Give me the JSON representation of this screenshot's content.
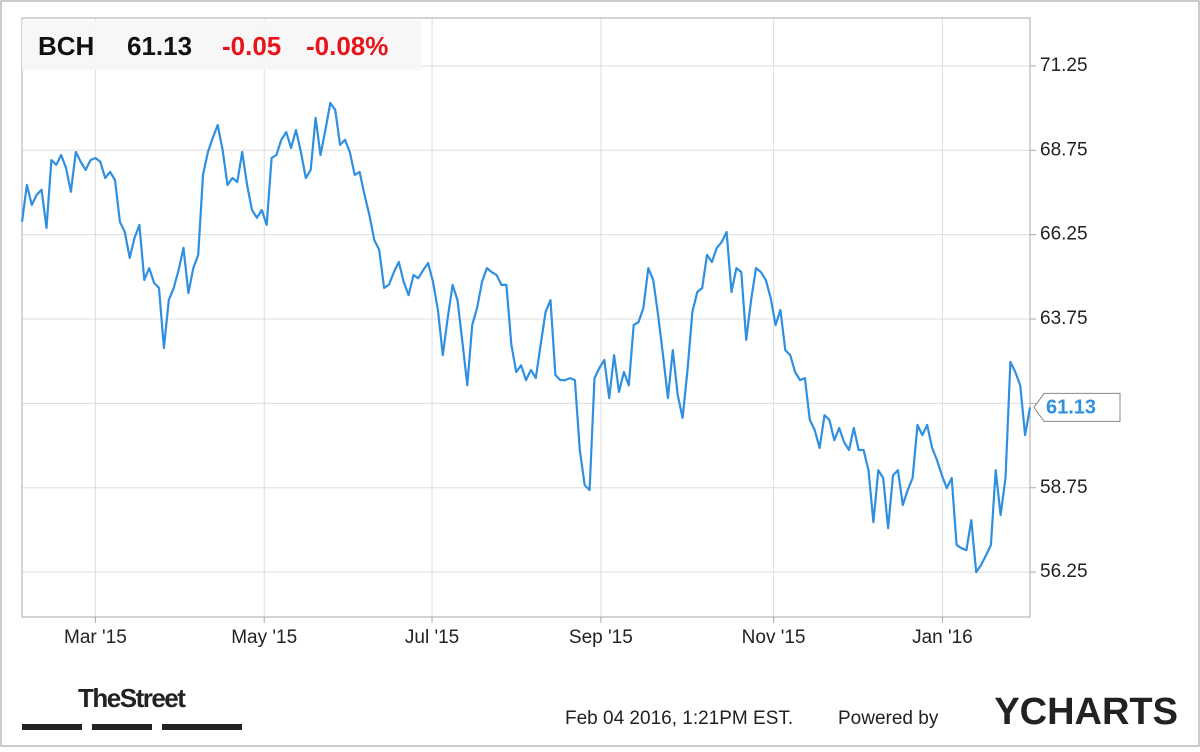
{
  "header": {
    "ticker": "BCH",
    "change": "-0.05",
    "change_percent": "-0.08%"
  },
  "chart_data": {
    "type": "line",
    "grid": true,
    "xlim": [
      0,
      206
    ],
    "xticks": [
      {
        "value": 15.0,
        "label": "Mar '15"
      },
      {
        "value": 49.5,
        "label": "May '15"
      },
      {
        "value": 83.8,
        "label": "Jul '15"
      },
      {
        "value": 118.3,
        "label": "Sep '15"
      },
      {
        "value": 153.6,
        "label": "Nov '15"
      },
      {
        "value": 188.1,
        "label": "Jan '16"
      }
    ],
    "ylim": [
      54.92,
      72.67
    ],
    "yticks": [
      56.25,
      58.75,
      61.25,
      63.75,
      66.25,
      68.75,
      71.25
    ],
    "series": [
      {
        "name": "BCH",
        "color": "#2f8fe0",
        "values": [
          66.63,
          67.72,
          67.13,
          67.43,
          67.58,
          66.45,
          68.46,
          68.32,
          68.61,
          68.23,
          67.52,
          68.7,
          68.41,
          68.17,
          68.46,
          68.52,
          68.41,
          67.93,
          68.11,
          67.87,
          66.63,
          66.33,
          65.56,
          66.15,
          66.54,
          64.91,
          65.26,
          64.82,
          64.67,
          62.89,
          64.31,
          64.67,
          65.2,
          65.86,
          64.52,
          65.26,
          65.65,
          68.02,
          68.7,
          69.12,
          69.5,
          68.76,
          67.72,
          67.93,
          67.81,
          68.7,
          67.72,
          66.98,
          66.75,
          66.98,
          66.54,
          68.52,
          68.61,
          69.06,
          69.29,
          68.82,
          69.35,
          68.7,
          67.93,
          68.17,
          69.71,
          68.61,
          69.35,
          70.15,
          69.95,
          68.91,
          69.06,
          68.7,
          68.02,
          68.11,
          67.43,
          66.83,
          66.09,
          65.8,
          64.67,
          64.77,
          65.14,
          65.44,
          64.85,
          64.46,
          65.05,
          64.96,
          65.2,
          65.41,
          64.85,
          64.02,
          62.68,
          63.78,
          64.76,
          64.31,
          63.07,
          61.79,
          63.57,
          64.08,
          64.85,
          65.26,
          65.14,
          65.05,
          64.76,
          64.76,
          63.0,
          62.18,
          62.38,
          61.94,
          62.24,
          62.0,
          63.0,
          63.96,
          64.31,
          62.09,
          61.94,
          61.94,
          62.0,
          61.94,
          59.87,
          58.83,
          58.68,
          62.0,
          62.3,
          62.54,
          61.41,
          62.68,
          61.59,
          62.18,
          61.79,
          63.57,
          63.66,
          64.08,
          65.26,
          64.91,
          63.87,
          62.68,
          61.41,
          62.83,
          61.5,
          60.82,
          62.24,
          63.96,
          64.55,
          64.67,
          65.65,
          65.44,
          65.86,
          66.03,
          66.33,
          64.55,
          65.26,
          65.14,
          63.13,
          64.31,
          65.26,
          65.14,
          64.91,
          64.37,
          63.57,
          64.02,
          62.83,
          62.68,
          62.18,
          61.94,
          62.0,
          60.76,
          60.46,
          59.93,
          60.9,
          60.76,
          60.16,
          60.52,
          60.1,
          59.87,
          60.52,
          59.87,
          59.87,
          59.27,
          57.73,
          59.27,
          59.04,
          57.55,
          59.12,
          59.27,
          58.24,
          58.68,
          59.04,
          60.61,
          60.31,
          60.61,
          59.93,
          59.57,
          59.12,
          58.74,
          59.04,
          57.05,
          56.96,
          56.9,
          57.79,
          56.25,
          56.46,
          56.75,
          57.05,
          59.27,
          57.94,
          59.04,
          62.48,
          62.18,
          61.79,
          60.31,
          61.13
        ]
      }
    ]
  },
  "footer": {
    "source": "TheStreet",
    "timestamp": "Feb 04 2016, 1:21PM EST.",
    "powered_by": "Powered by",
    "brand": "YCHARTS"
  }
}
